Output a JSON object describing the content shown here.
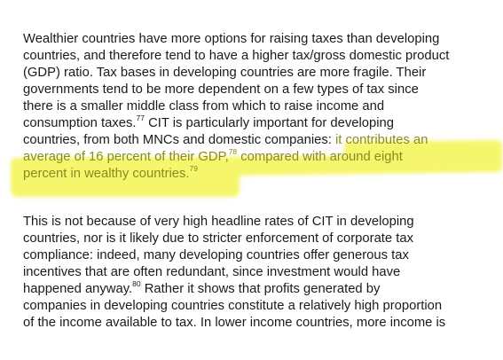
{
  "paragraph1": {
    "line1": "Wealthier countries have more options for raising taxes than developing",
    "line2": "countries, and therefore tend to have a higher tax/gross domestic product",
    "line3": "(GDP) ratio. Tax bases in developing countries are more fragile. Their",
    "line4": "governments tend to be more dependent on a few types of tax since",
    "line5": "there is a smaller middle class from which to raise income and",
    "line6_a": "consumption taxes.",
    "fn77": "77",
    "line6_b": " CIT is particularly important for developing",
    "line7_a": "countries, from both MNCs and domestic companies: ",
    "line7_b": "it contributes an",
    "line8_a": "average of 16 percent of their GDP,",
    "fn78": "78",
    "line8_b": " compared with around eight",
    "line9_a": "percent in wealthy countries.",
    "fn79": "79"
  },
  "paragraph2": {
    "line1": "This is not because of very high headline rates of CIT in developing",
    "line2": "countries, nor is it likely due to stricter enforcement of corporate tax",
    "line3": "compliance: indeed, many developing countries offer generous tax",
    "line4": "incentives that are often redundant, since investment would have",
    "line5_a": "happened anyway.",
    "fn80": "80",
    "line5_b": " Rather it shows that profits generated by",
    "line6": "companies in developing countries constitute a relatively high proportion",
    "line7": "of the income available to tax. In lower income countries, more income is"
  },
  "colors": {
    "highlight": "#f5f55c",
    "highlighted_text": "#8a8a1e",
    "body_text": "#1a1a1a"
  }
}
